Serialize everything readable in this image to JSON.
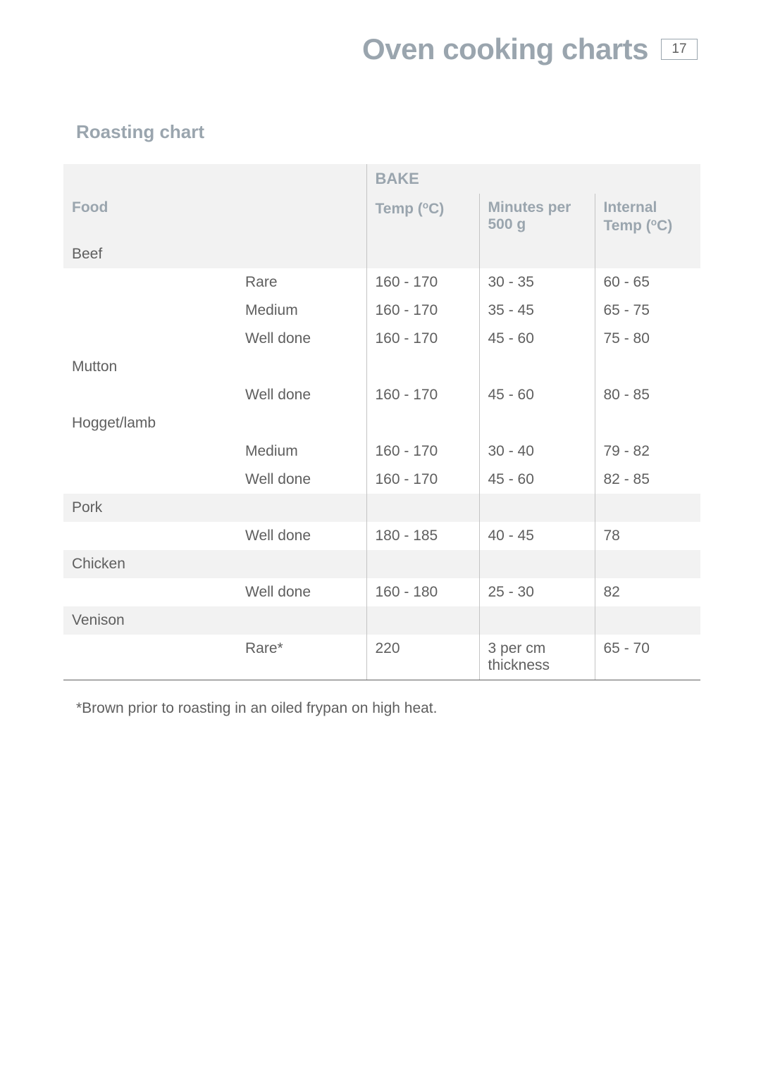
{
  "colors": {
    "accent": "#9aa5ae",
    "text": "#5e5e5e",
    "header_accent": "#9aa5ae",
    "shade_bg": "#f2f2f2",
    "rule": "#c4c4c4",
    "bottom_rule": "#5e5e5e"
  },
  "page_title": "Oven cooking charts",
  "page_number": "17",
  "section_heading": "Roasting chart",
  "table": {
    "supercol_label": "BAKE",
    "col_food": "Food",
    "col_temp": "Temp (°C)",
    "col_temp_pre": "Temp (",
    "col_temp_post": "C)",
    "col_min_l1": "Minutes per",
    "col_min_l2": "500 g",
    "col_int_l1": "Internal",
    "col_int_pre": "Temp (",
    "col_int_post": "C)",
    "rows": [
      {
        "type": "cat",
        "food": "Beef",
        "shaded": true
      },
      {
        "type": "data",
        "doneness": "Rare",
        "temp": "160 - 170",
        "mins": "30 - 35",
        "internal": "60 - 65"
      },
      {
        "type": "data",
        "doneness": "Medium",
        "temp": "160 - 170",
        "mins": "35 - 45",
        "internal": "65 - 75"
      },
      {
        "type": "data",
        "doneness": "Well done",
        "temp": "160 - 170",
        "mins": "45 - 60",
        "internal": "75 - 80"
      },
      {
        "type": "cat",
        "food": "Mutton",
        "shaded": false
      },
      {
        "type": "data",
        "doneness": "Well done",
        "temp": "160 - 170",
        "mins": "45 - 60",
        "internal": "80 - 85"
      },
      {
        "type": "cat",
        "food": "Hogget/lamb",
        "shaded": false
      },
      {
        "type": "data",
        "doneness": "Medium",
        "temp": "160 - 170",
        "mins": "30 - 40",
        "internal": "79 - 82"
      },
      {
        "type": "data",
        "doneness": "Well done",
        "temp": "160 - 170",
        "mins": "45 - 60",
        "internal": "82 - 85"
      },
      {
        "type": "cat",
        "food": "Pork",
        "shaded": true
      },
      {
        "type": "data",
        "doneness": "Well done",
        "temp": "180 - 185",
        "mins": "40 - 45",
        "internal": "78"
      },
      {
        "type": "cat",
        "food": "Chicken",
        "shaded": true
      },
      {
        "type": "data",
        "doneness": "Well done",
        "temp": "160 - 180",
        "mins": "25 - 30",
        "internal": "82"
      },
      {
        "type": "cat",
        "food": "Venison",
        "shaded": true
      },
      {
        "type": "data",
        "doneness": "Rare*",
        "temp": "220",
        "mins": "3   per cm thickness",
        "internal": "65 - 70"
      }
    ]
  },
  "footnote": "*Brown prior to roasting in an oiled frypan on high heat."
}
